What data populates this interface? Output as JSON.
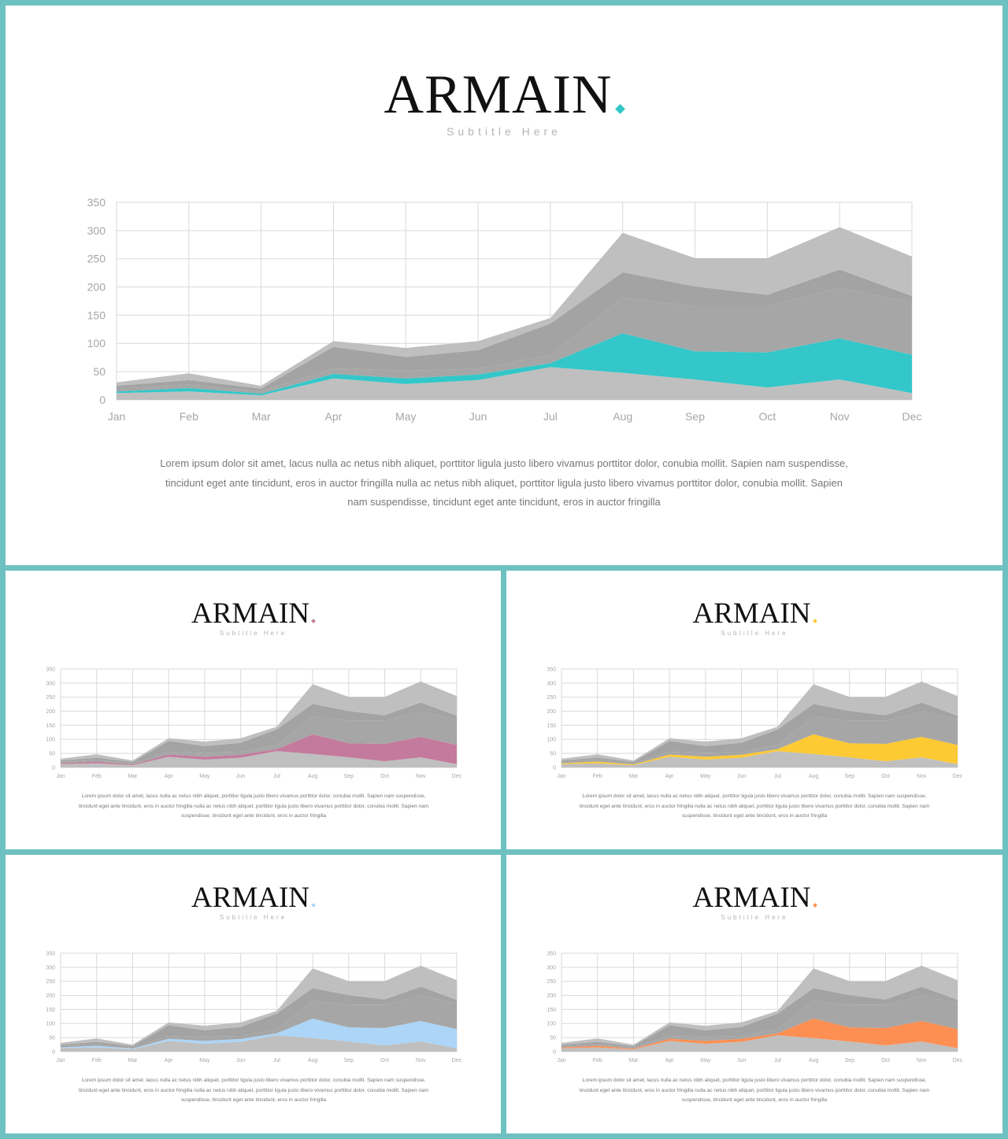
{
  "slides": [
    {
      "brand": "ARMAIN",
      "dot": ".",
      "subtitle": "Subtitle Here",
      "accent": "#33c7c9"
    },
    {
      "brand": "ARMAIN",
      "dot": ".",
      "subtitle": "Subtitle Here",
      "accent": "#c47a9c"
    },
    {
      "brand": "ARMAIN",
      "dot": ".",
      "subtitle": "Subtitle Here",
      "accent": "#fdca34"
    },
    {
      "brand": "ARMAIN",
      "dot": ".",
      "subtitle": "Subtitle Here",
      "accent": "#add5f7"
    },
    {
      "brand": "ARMAIN",
      "dot": ".",
      "subtitle": "Subtitle Here",
      "accent": "#fd8f53"
    }
  ],
  "body_text": "Lorem ipsum dolor sit amet, lacus nulla ac netus nibh aliquet, porttitor ligula justo libero vivamus porttitor dolor, conubia mollit. Sapien nam suspendisse, tincidunt eget ante tincidunt, eros in auctor fringilla nulla ac netus nibh aliquet, porttitor ligula justo libero vivamus porttitor dolor, conubia mollit. Sapien nam suspendisse, tincidunt eget ante tincidunt, eros in auctor fringilla",
  "chart_data": {
    "type": "area",
    "stacked": true,
    "categories": [
      "Jan",
      "Feb",
      "Mar",
      "Apr",
      "May",
      "Jun",
      "Jul",
      "Aug",
      "Sep",
      "Oct",
      "Nov",
      "Dec"
    ],
    "ylim": [
      0,
      350
    ],
    "yticks": [
      0,
      50,
      100,
      150,
      200,
      250,
      300,
      350
    ],
    "grid": true,
    "series": [
      {
        "values": [
          12,
          15,
          8,
          38,
          28,
          35,
          58,
          48,
          36,
          22,
          36,
          12
        ],
        "color": "#bfbfbf"
      },
      {
        "values": [
          3,
          6,
          3,
          8,
          10,
          10,
          7,
          70,
          50,
          62,
          73,
          68
        ],
        "color": "accent"
      },
      {
        "values": [
          5,
          6,
          4,
          10,
          14,
          10,
          15,
          63,
          80,
          82,
          90,
          92
        ],
        "color": "#a6a6a6"
      },
      {
        "values": [
          5,
          8,
          5,
          38,
          24,
          33,
          55,
          45,
          35,
          20,
          32,
          12
        ],
        "color": "#a3a3a3"
      },
      {
        "values": [
          6,
          12,
          5,
          10,
          16,
          16,
          10,
          70,
          50,
          65,
          75,
          70
        ],
        "color": "#bfbfbf"
      }
    ]
  }
}
